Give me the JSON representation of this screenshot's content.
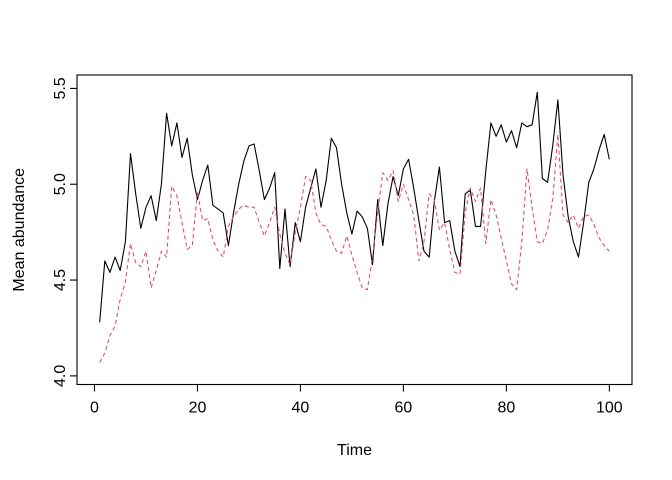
{
  "figure": {
    "background": "#ffffff",
    "border_color": "#000000"
  },
  "chart_data": {
    "type": "line",
    "title": "",
    "xlabel": "Time",
    "ylabel": "Mean abundance",
    "grid": false,
    "legend": "none",
    "x_axis": {
      "ticks": [
        0,
        20,
        40,
        60,
        80,
        100
      ],
      "range": [
        -3.4,
        104.4
      ]
    },
    "y_axis": {
      "ticks": [
        "4.0",
        "4.5",
        "5.0",
        "5.5"
      ],
      "range": [
        3.955,
        5.57
      ]
    },
    "x_start": 1,
    "series": [
      {
        "name": "mean-abundance-solid-black",
        "style": "solid",
        "color": "#000000",
        "values": [
          4.28,
          4.6,
          4.54,
          4.62,
          4.55,
          4.7,
          5.16,
          4.95,
          4.77,
          4.88,
          4.94,
          4.81,
          5.0,
          5.37,
          5.2,
          5.32,
          5.14,
          5.24,
          5.05,
          4.92,
          5.02,
          5.1,
          4.89,
          4.87,
          4.85,
          4.68,
          4.85,
          5.0,
          5.12,
          5.2,
          5.21,
          5.07,
          4.92,
          4.98,
          5.06,
          4.56,
          4.87,
          4.57,
          4.8,
          4.7,
          4.88,
          4.98,
          5.08,
          4.88,
          5.02,
          5.24,
          5.19,
          5.0,
          4.85,
          4.74,
          4.86,
          4.83,
          4.77,
          4.58,
          4.92,
          4.68,
          4.9,
          5.04,
          4.94,
          5.08,
          5.13,
          4.98,
          4.81,
          4.65,
          4.62,
          4.91,
          5.09,
          4.8,
          4.81,
          4.65,
          4.57,
          4.95,
          4.97,
          4.78,
          4.78,
          5.07,
          5.32,
          5.25,
          5.31,
          5.22,
          5.28,
          5.19,
          5.32,
          5.3,
          5.31,
          5.48,
          5.03,
          5.01,
          5.2,
          5.44,
          5.05,
          4.83,
          4.7,
          4.62,
          4.8,
          5.01,
          5.08,
          5.18,
          5.26,
          5.13
        ]
      },
      {
        "name": "mean-abundance-dashed-red",
        "style": "dashed",
        "color": "#DF536B",
        "values": [
          4.07,
          4.12,
          4.21,
          4.26,
          4.4,
          4.49,
          4.69,
          4.59,
          4.57,
          4.65,
          4.46,
          4.55,
          4.65,
          4.62,
          4.99,
          4.94,
          4.8,
          4.66,
          4.68,
          4.96,
          4.81,
          4.82,
          4.71,
          4.65,
          4.62,
          4.78,
          4.83,
          4.87,
          4.89,
          4.88,
          4.88,
          4.8,
          4.73,
          4.8,
          4.88,
          4.74,
          4.64,
          4.58,
          4.75,
          4.88,
          5.04,
          5.02,
          4.85,
          4.79,
          4.78,
          4.71,
          4.65,
          4.64,
          4.73,
          4.63,
          4.54,
          4.46,
          4.45,
          4.62,
          4.85,
          5.06,
          5.02,
          5.07,
          4.91,
          5.0,
          4.92,
          4.84,
          4.6,
          4.7,
          4.95,
          4.92,
          4.76,
          4.8,
          4.66,
          4.54,
          4.53,
          4.85,
          4.98,
          4.91,
          4.98,
          4.69,
          4.92,
          4.84,
          4.72,
          4.6,
          4.48,
          4.45,
          4.7,
          5.08,
          4.88,
          4.7,
          4.69,
          4.76,
          4.92,
          5.26,
          4.84,
          4.8,
          4.84,
          4.77,
          4.83,
          4.84,
          4.79,
          4.72,
          4.68,
          4.65
        ]
      }
    ]
  }
}
